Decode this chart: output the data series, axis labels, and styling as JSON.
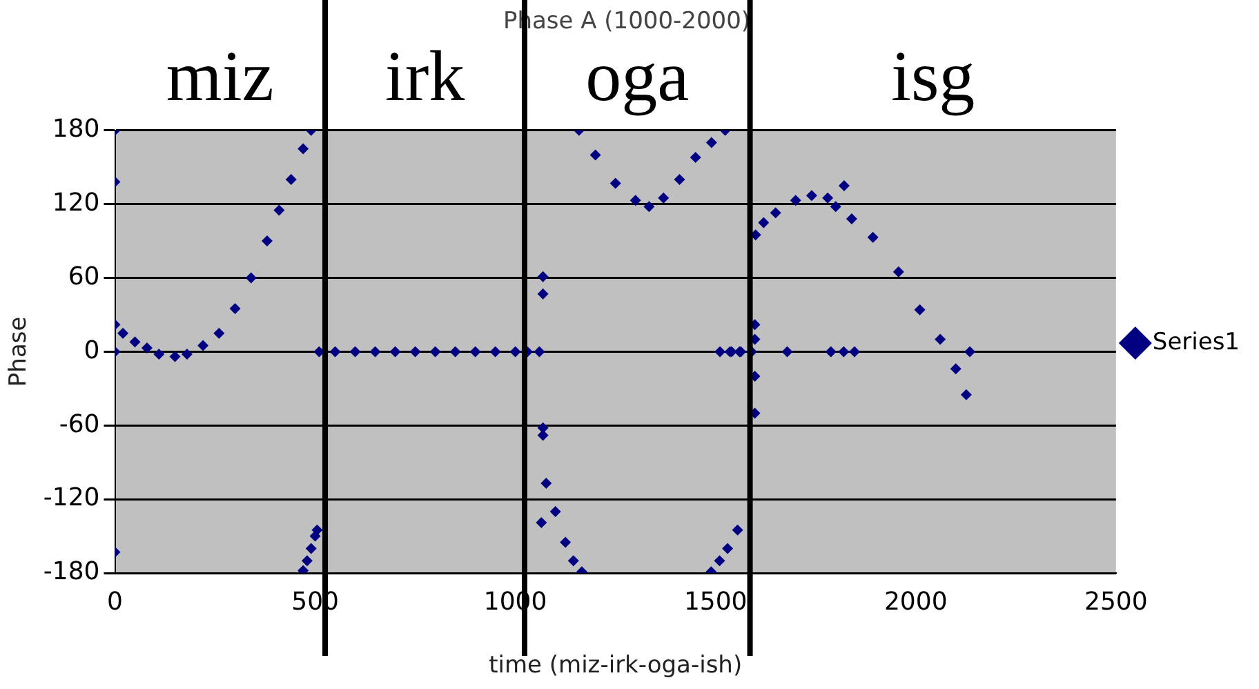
{
  "chart_data": {
    "type": "scatter",
    "title": "Phase A (1000-2000)",
    "xlabel": "time (miz-irk-oga-ish)",
    "ylabel": "Phase",
    "annotations": [
      "miz",
      "irk",
      "oga",
      "isg"
    ],
    "ref_lines": [
      {
        "axis": "x",
        "value": 525,
        "color": "#000000"
      },
      {
        "axis": "x",
        "value": 1023,
        "color": "#000000"
      },
      {
        "axis": "x",
        "value": 1586,
        "color": "#000000"
      }
    ],
    "xlim": [
      0,
      2500
    ],
    "xticks": [
      0,
      500,
      1000,
      1500,
      2000,
      2500
    ],
    "ylim": [
      -180,
      180
    ],
    "yticks": [
      -180,
      -120,
      -60,
      0,
      60,
      120,
      180
    ],
    "grid": "y",
    "legend": "right",
    "marker": "diamond",
    "series": [
      {
        "name": "Series1",
        "color": "#000080",
        "x": [
          0,
          0,
          0,
          0,
          0,
          20,
          50,
          80,
          110,
          150,
          180,
          220,
          260,
          300,
          340,
          380,
          410,
          440,
          470,
          490,
          470,
          480,
          490,
          500,
          505,
          510,
          550,
          600,
          650,
          700,
          750,
          800,
          850,
          900,
          950,
          1000,
          1030,
          1060,
          1069,
          1069,
          1069,
          1069,
          1065,
          1077,
          1100,
          1125,
          1145,
          1166,
          1159,
          1200,
          1250,
          1300,
          1334,
          1370,
          1410,
          1450,
          1490,
          1524,
          1511,
          1540,
          1563,
          1489,
          1510,
          1530,
          1555,
          1536,
          1560,
          1590,
          1598,
          1598,
          1598,
          1598,
          1679,
          1788,
          1820,
          1847,
          1600,
          1620,
          1650,
          1700,
          1740,
          1780,
          1800,
          1821,
          1840,
          1893,
          1957,
          2010,
          2061,
          2100,
          2126,
          2135
        ],
        "values": [
          180,
          138,
          0,
          -163,
          22,
          15,
          8,
          3,
          -2,
          -4,
          -2,
          5,
          15,
          35,
          60,
          90,
          115,
          140,
          165,
          180,
          -178,
          -170,
          -160,
          -150,
          -145,
          0,
          0,
          0,
          0,
          0,
          0,
          0,
          0,
          0,
          0,
          0,
          0,
          0,
          61,
          47,
          -62,
          -68,
          -139,
          -107,
          -130,
          -155,
          -170,
          -179,
          180,
          160,
          137,
          123,
          118,
          125,
          140,
          158,
          170,
          180,
          0,
          0,
          0,
          -179,
          -170,
          -160,
          -145,
          0,
          0,
          0,
          22,
          10,
          -20,
          -50,
          0,
          0,
          0,
          0,
          95,
          105,
          113,
          123,
          127,
          125,
          118,
          135,
          108,
          93,
          65,
          34,
          10,
          -14,
          -35,
          0
        ]
      }
    ]
  }
}
